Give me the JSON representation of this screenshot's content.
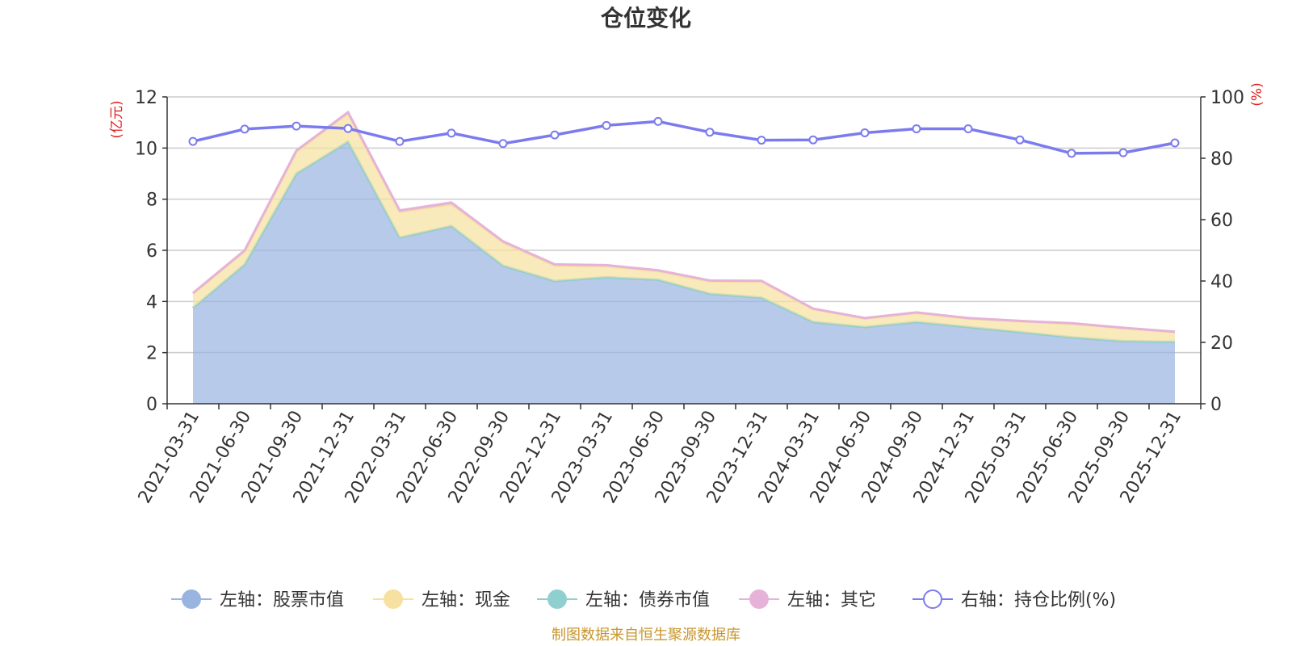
{
  "chart_data": {
    "type": "area",
    "title": "仓位变化",
    "left_axis_label": "(亿元)",
    "right_axis_label": "(%)",
    "categories": [
      "2021-03-31",
      "2021-06-30",
      "2021-09-30",
      "2021-12-31",
      "2022-03-31",
      "2022-06-30",
      "2022-09-30",
      "2022-12-31",
      "2023-03-31",
      "2023-06-30",
      "2023-09-30",
      "2023-12-31",
      "2024-03-31",
      "2024-06-30",
      "2024-09-30",
      "2024-12-31",
      "2025-03-31",
      "2025-06-30",
      "2025-09-30",
      "2025-12-31"
    ],
    "left_ylim": [
      0,
      12
    ],
    "left_ticks": [
      0,
      2,
      4,
      6,
      8,
      10,
      12
    ],
    "right_ylim": [
      0,
      100
    ],
    "right_ticks": [
      0,
      20,
      40,
      60,
      80,
      100
    ],
    "stack_order": [
      "stock",
      "bond",
      "cash",
      "other"
    ],
    "series": [
      {
        "key": "stock",
        "name": "左轴：股票市值",
        "axis": "left",
        "color": "#9ab4e0",
        "values": [
          3.75,
          5.45,
          9.0,
          10.25,
          6.5,
          6.95,
          5.4,
          4.8,
          4.95,
          4.85,
          4.3,
          4.15,
          3.2,
          3.0,
          3.2,
          3.0,
          2.8,
          2.6,
          2.45,
          2.42
        ]
      },
      {
        "key": "cash",
        "name": "左轴：现金",
        "axis": "left",
        "color": "#f6e1a0",
        "values": [
          0.55,
          0.5,
          0.85,
          1.1,
          1.0,
          0.85,
          0.9,
          0.6,
          0.43,
          0.33,
          0.48,
          0.62,
          0.5,
          0.33,
          0.35,
          0.33,
          0.42,
          0.53,
          0.5,
          0.38
        ]
      },
      {
        "key": "bond",
        "name": "左轴：债券市值",
        "axis": "left",
        "color": "#8fcfcf",
        "values": [
          0,
          0,
          0,
          0,
          0,
          0,
          0,
          0,
          0,
          0,
          0,
          0,
          0,
          0,
          0,
          0,
          0,
          0,
          0,
          0
        ]
      },
      {
        "key": "other",
        "name": "左轴：其它",
        "axis": "left",
        "color": "#e6b2d8",
        "values": [
          0.03,
          0.05,
          0.05,
          0.05,
          0.06,
          0.07,
          0.05,
          0.05,
          0.04,
          0.04,
          0.04,
          0.04,
          0.02,
          0.02,
          0.02,
          0.02,
          0.02,
          0.02,
          0.02,
          0.02
        ]
      },
      {
        "key": "ratio",
        "name": "右轴：持仓比例(%)",
        "axis": "right",
        "color": "#7b7bef",
        "values": [
          85.5,
          89.5,
          90.5,
          89.7,
          85.5,
          88.2,
          84.8,
          87.6,
          90.7,
          92.0,
          88.5,
          85.9,
          86.0,
          88.3,
          89.6,
          89.6,
          86.0,
          81.6,
          81.8,
          85.0
        ]
      }
    ]
  },
  "source_note": "制图数据来自恒生聚源数据库",
  "colors": {
    "axis_label": "#e02020",
    "source": "#c8962c",
    "grid": "#cccccc",
    "axis": "#333333"
  }
}
